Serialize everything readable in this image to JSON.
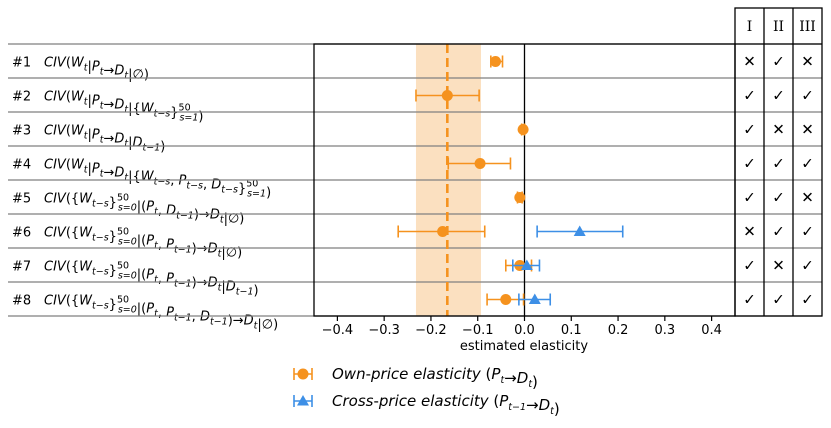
{
  "chart_data": {
    "type": "scatter",
    "xlabel": "estimated elasticity",
    "xlim": [
      -0.45,
      0.45
    ],
    "xticks": [
      "−0.4",
      "−0.3",
      "−0.2",
      "−0.1",
      "0.0",
      "0.1",
      "0.2",
      "0.3",
      "0.4"
    ],
    "xtick_values": [
      -0.4,
      -0.3,
      -0.2,
      -0.1,
      0.0,
      0.1,
      0.2,
      0.3,
      0.4
    ],
    "reference_line": -0.165,
    "reference_band": [
      -0.232,
      -0.093
    ],
    "colors": {
      "own": "#f5921e",
      "cross": "#3d8fe6",
      "band": "#fbe0c0"
    },
    "columns": [
      "I",
      "II",
      "III"
    ],
    "rows": [
      {
        "id": "#1",
        "label": "CIV(W_t|P_t→D_t|∅)",
        "own": {
          "value": -0.062,
          "lo": -0.072,
          "hi": -0.047
        },
        "cross": null,
        "checks": [
          "✕",
          "✓",
          "✕"
        ]
      },
      {
        "id": "#2",
        "label": "CIV(W_t|P_t→D_t|{W_{t−s}}^{50}_{s=1})",
        "own": {
          "value": -0.165,
          "lo": -0.232,
          "hi": -0.097
        },
        "cross": null,
        "checks": [
          "✓",
          "✓",
          "✓"
        ]
      },
      {
        "id": "#3",
        "label": "CIV(W_t|P_t→D_t|D_{t−1})",
        "own": {
          "value": -0.003,
          "lo": -0.006,
          "hi": 0.0
        },
        "cross": null,
        "checks": [
          "✓",
          "✕",
          "✕"
        ]
      },
      {
        "id": "#4",
        "label": "CIV(W_t|P_t→D_t|{W_{t−s}, P_{t−s}, D_{t−s}}^{50}_{s=1})",
        "own": {
          "value": -0.095,
          "lo": -0.163,
          "hi": -0.03
        },
        "cross": null,
        "checks": [
          "✓",
          "✓",
          "✓"
        ]
      },
      {
        "id": "#5",
        "label": "CIV({W_{t−s}}^{50}_{s=0}|(P_t, D_{t−1})→D_t|∅)",
        "own": {
          "value": -0.01,
          "lo": -0.015,
          "hi": -0.005
        },
        "cross": null,
        "checks": [
          "✓",
          "✓",
          "✕"
        ]
      },
      {
        "id": "#6",
        "label": "CIV({W_{t−s}}^{50}_{s=0}|(P_t, P_{t−1})→D_t|∅)",
        "own": {
          "value": -0.175,
          "lo": -0.27,
          "hi": -0.085
        },
        "cross": {
          "value": 0.118,
          "lo": 0.027,
          "hi": 0.21
        },
        "checks": [
          "✕",
          "✓",
          "✓"
        ]
      },
      {
        "id": "#7",
        "label": "CIV({W_{t−s}}^{50}_{s=0}|(P_t, P_{t−1})→D_t|D_{t−1})",
        "own": {
          "value": -0.01,
          "lo": -0.04,
          "hi": 0.015
        },
        "cross": {
          "value": 0.005,
          "lo": -0.025,
          "hi": 0.032
        },
        "checks": [
          "✓",
          "✕",
          "✓"
        ]
      },
      {
        "id": "#8",
        "label": "CIV({W_{t−s}}^{50}_{s=0}|(P_t, P_{t−1}, D_{t−1})→D_t|∅)",
        "own": {
          "value": -0.04,
          "lo": -0.08,
          "hi": -0.002
        },
        "cross": {
          "value": 0.022,
          "lo": -0.012,
          "hi": 0.055
        },
        "checks": [
          "✓",
          "✓",
          "✓"
        ]
      }
    ],
    "legend": [
      {
        "series": "own",
        "text": "Own-price elasticity (P_t→D_t)"
      },
      {
        "series": "cross",
        "text": "Cross-price elasticity (P_{t−1}→D_t)"
      }
    ]
  }
}
